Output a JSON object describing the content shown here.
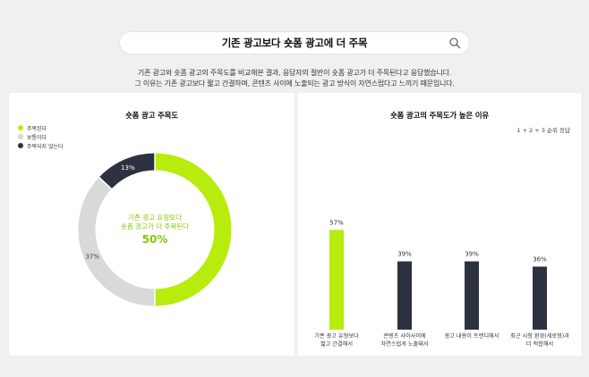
{
  "search": {
    "query": "기존 광고보다 숏폼 광고에 더 주목"
  },
  "description": {
    "line1": "기존 광고와 숏폼 광고의 주목도를 비교해본 결과, 응답자의 절반이 숏폼 광고가 더 주목된다고 응답했습니다.",
    "line2": "그 이유는 기존 광고보다 짧고 간결하며, 콘텐츠 사이에 노출되는 광고 방식이 자연스럽다고 느끼기 때문입니다."
  },
  "colors": {
    "accent": "#b8ec0c",
    "gray": "#d9d9d9",
    "dark": "#2d3240",
    "accent_text": "#86c800"
  },
  "chart_data": [
    {
      "type": "pie",
      "title": "숏폼 광고 주목도",
      "legend_position": "top-left",
      "slices": [
        {
          "label": "주목된다",
          "value": 50,
          "color": "#b8ec0c"
        },
        {
          "label": "보통이다",
          "value": 37,
          "color": "#d9d9d9"
        },
        {
          "label": "주목되지 않는다",
          "value": 13,
          "color": "#2d3240"
        }
      ],
      "data_labels": [
        "50%",
        "37%",
        "13%"
      ],
      "center_text": {
        "line1": "기존 광고 유형보다",
        "line2": "숏폼 광고가 더 주목된다",
        "value": "50%"
      }
    },
    {
      "type": "bar",
      "title": "숏폼 광고의 주목도가 높은 이유",
      "note": "1 + 2 + 3 순위 응답",
      "categories": [
        [
          "기존 광고 유형보다",
          "짧고 간결해서"
        ],
        [
          "콘텐츠 사이사이에",
          "자연스럽게 노출돼서"
        ],
        [
          "광고 내용이 트렌디해서"
        ],
        [
          "최근 시청 환경(세로형)과",
          "더 적합해서"
        ]
      ],
      "values": [
        57,
        39,
        39,
        36
      ],
      "data_labels": [
        "57%",
        "39%",
        "39%",
        "36%"
      ],
      "colors": [
        "#b8ec0c",
        "#2d3240",
        "#2d3240",
        "#2d3240"
      ],
      "ylim": [
        0,
        100
      ],
      "grid": false
    }
  ]
}
